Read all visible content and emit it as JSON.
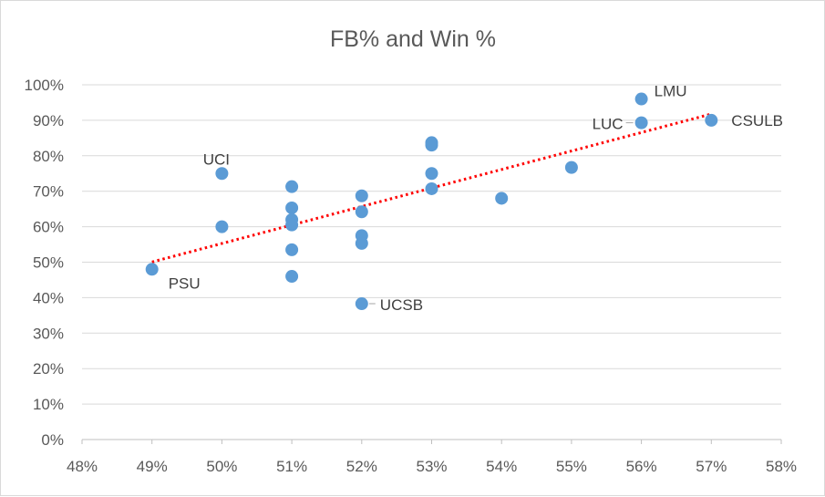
{
  "chart_data": {
    "type": "scatter",
    "title": "FB% and Win %",
    "xlabel": "",
    "ylabel": "",
    "xlim": [
      0.48,
      0.58
    ],
    "ylim": [
      0,
      1.0
    ],
    "x_ticks": [
      "48%",
      "49%",
      "50%",
      "51%",
      "52%",
      "53%",
      "54%",
      "55%",
      "56%",
      "57%",
      "58%"
    ],
    "y_ticks": [
      "0%",
      "10%",
      "20%",
      "30%",
      "40%",
      "50%",
      "60%",
      "70%",
      "80%",
      "90%",
      "100%"
    ],
    "grid": "horizontal",
    "legend": "none",
    "marker_color": "#5b9bd5",
    "trendline": {
      "type": "linear",
      "style": "dotted",
      "color": "#ff0000",
      "x_range": [
        0.49,
        0.57
      ]
    },
    "points": [
      {
        "x": 0.49,
        "y": 0.48,
        "label": "PSU"
      },
      {
        "x": 0.5,
        "y": 0.75,
        "label": "UCI"
      },
      {
        "x": 0.5,
        "y": 0.6,
        "label": ""
      },
      {
        "x": 0.51,
        "y": 0.713,
        "label": ""
      },
      {
        "x": 0.51,
        "y": 0.653,
        "label": ""
      },
      {
        "x": 0.51,
        "y": 0.62,
        "label": ""
      },
      {
        "x": 0.51,
        "y": 0.605,
        "label": ""
      },
      {
        "x": 0.51,
        "y": 0.535,
        "label": ""
      },
      {
        "x": 0.51,
        "y": 0.46,
        "label": ""
      },
      {
        "x": 0.52,
        "y": 0.687,
        "label": ""
      },
      {
        "x": 0.52,
        "y": 0.642,
        "label": ""
      },
      {
        "x": 0.52,
        "y": 0.575,
        "label": ""
      },
      {
        "x": 0.52,
        "y": 0.553,
        "label": ""
      },
      {
        "x": 0.52,
        "y": 0.383,
        "label": "UCSB"
      },
      {
        "x": 0.53,
        "y": 0.837,
        "label": ""
      },
      {
        "x": 0.53,
        "y": 0.83,
        "label": ""
      },
      {
        "x": 0.53,
        "y": 0.75,
        "label": ""
      },
      {
        "x": 0.53,
        "y": 0.707,
        "label": ""
      },
      {
        "x": 0.54,
        "y": 0.68,
        "label": ""
      },
      {
        "x": 0.55,
        "y": 0.767,
        "label": ""
      },
      {
        "x": 0.56,
        "y": 0.96,
        "label": "LMU"
      },
      {
        "x": 0.56,
        "y": 0.893,
        "label": "LUC"
      },
      {
        "x": 0.57,
        "y": 0.9,
        "label": "CSULB"
      }
    ]
  }
}
